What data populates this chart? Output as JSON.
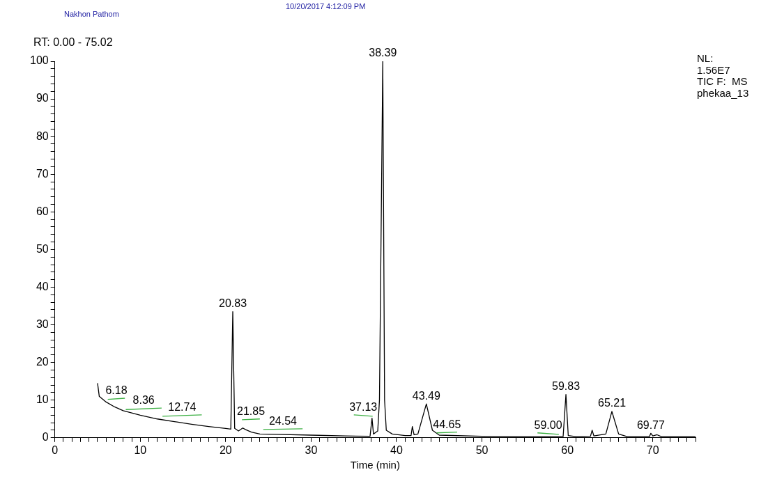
{
  "chart_data": {
    "type": "line",
    "xlabel": "Time (min)",
    "annotations": [
      "Nakhon Pathom",
      "10/20/2017 4:12:09 PM",
      "RT: 0.00 - 75.02",
      "NL:\n1.56E7\nTIC F:  MS\nphekaa_13",
      {
        "text": "6.18",
        "x": 6.18,
        "y": 10.6
      },
      {
        "text": "8.36",
        "x": 8.36,
        "y": 8.0
      },
      {
        "text": "12.74",
        "x": 12.74,
        "y": 6.1
      },
      {
        "text": "20.83",
        "x": 20.83,
        "y": 33.5
      },
      {
        "text": "21.85",
        "x": 21.85,
        "y": 5.0
      },
      {
        "text": "24.54",
        "x": 24.54,
        "y": 2.4
      },
      {
        "text": "37.13",
        "x": 37.13,
        "y": 6.1
      },
      {
        "text": "38.39",
        "x": 38.39,
        "y": 100
      },
      {
        "text": "43.49",
        "x": 43.49,
        "y": 9
      },
      {
        "text": "44.65",
        "x": 44.65,
        "y": 1.5
      },
      {
        "text": "59.00",
        "x": 59.0,
        "y": 1.3
      },
      {
        "text": "59.83",
        "x": 59.83,
        "y": 11.5
      },
      {
        "text": "65.21",
        "x": 65.21,
        "y": 7
      },
      {
        "text": "69.77",
        "x": 69.77,
        "y": 1.2
      }
    ],
    "series": [
      {
        "color": "#000000",
        "x": [
          5.0,
          5.2,
          6,
          7,
          8,
          10,
          12,
          14,
          16,
          18,
          20,
          20.6,
          20.83,
          21.05,
          21.5,
          22,
          22.3,
          23,
          24,
          26,
          30,
          34,
          36.9,
          37.13,
          37.3,
          37.6,
          37.8,
          38.0,
          38.39,
          38.6,
          38.8,
          39.5,
          41,
          41.7,
          41.85,
          42.05,
          42.5,
          43.49,
          44.2,
          45,
          50,
          55,
          59.5,
          59.83,
          60.1,
          61,
          62.7,
          62.9,
          63.1,
          64.5,
          65.21,
          66,
          67,
          69.6,
          69.77,
          70,
          70.5,
          71,
          75
        ],
        "values": [
          14.5,
          11,
          9.5,
          8.2,
          7.2,
          6,
          5,
          4.3,
          3.6,
          3,
          2.5,
          2.3,
          33.5,
          2.5,
          1.8,
          2.6,
          2.2,
          1.5,
          1,
          0.9,
          0.7,
          0.5,
          0.4,
          5.2,
          1,
          1.5,
          1.8,
          10,
          100,
          10,
          2,
          1,
          0.6,
          0.6,
          3,
          0.8,
          1,
          9,
          2,
          0.7,
          0.4,
          0.3,
          0.3,
          11.5,
          0.6,
          0.3,
          0.4,
          2,
          0.5,
          1,
          7,
          1,
          0.3,
          0.3,
          1.2,
          0.5,
          0.8,
          0.3,
          0.3
        ]
      },
      {
        "color": "#3cb043",
        "x": [
          6.2,
          8.2,
          8.25,
          8.3,
          12.5,
          12.55,
          12.6,
          17.2,
          17.25,
          21.9,
          24,
          24.2,
          24.4,
          29,
          29.2,
          35,
          37.2,
          37.3,
          44.7,
          47.1,
          47.5,
          56.5,
          59
        ],
        "values": [
          10.2,
          10.5,
          null,
          7.5,
          7.9,
          null,
          5.7,
          6.1,
          null,
          4.8,
          5.0,
          null,
          2.2,
          2.4,
          null,
          6.1,
          5.7,
          null,
          1.3,
          1.5,
          null,
          1.3,
          0.9
        ]
      }
    ],
    "xlim": [
      0,
      75
    ],
    "xticks": [
      0,
      {
        "value": 1,
        "label": null
      },
      {
        "value": 2,
        "label": null
      },
      {
        "value": 3,
        "label": null
      },
      {
        "value": 4,
        "label": null
      },
      {
        "value": 5,
        "label": null
      },
      {
        "value": 6,
        "label": null
      },
      {
        "value": 7,
        "label": null
      },
      {
        "value": 8,
        "label": null
      },
      {
        "value": 9,
        "label": null
      },
      10,
      {
        "value": 11,
        "label": null
      },
      {
        "value": 12,
        "label": null
      },
      {
        "value": 13,
        "label": null
      },
      {
        "value": 14,
        "label": null
      },
      {
        "value": 15,
        "label": null
      },
      {
        "value": 16,
        "label": null
      },
      {
        "value": 17,
        "label": null
      },
      {
        "value": 18,
        "label": null
      },
      {
        "value": 19,
        "label": null
      },
      20,
      {
        "value": 21,
        "label": null
      },
      {
        "value": 22,
        "label": null
      },
      {
        "value": 23,
        "label": null
      },
      {
        "value": 24,
        "label": null
      },
      {
        "value": 25,
        "label": null
      },
      {
        "value": 26,
        "label": null
      },
      {
        "value": 27,
        "label": null
      },
      {
        "value": 28,
        "label": null
      },
      {
        "value": 29,
        "label": null
      },
      30,
      {
        "value": 31,
        "label": null
      },
      {
        "value": 32,
        "label": null
      },
      {
        "value": 33,
        "label": null
      },
      {
        "value": 34,
        "label": null
      },
      {
        "value": 35,
        "label": null
      },
      {
        "value": 36,
        "label": null
      },
      {
        "value": 37,
        "label": null
      },
      {
        "value": 38,
        "label": null
      },
      {
        "value": 39,
        "label": null
      },
      40,
      {
        "value": 41,
        "label": null
      },
      {
        "value": 42,
        "label": null
      },
      {
        "value": 43,
        "label": null
      },
      {
        "value": 44,
        "label": null
      },
      {
        "value": 45,
        "label": null
      },
      {
        "value": 46,
        "label": null
      },
      {
        "value": 47,
        "label": null
      },
      {
        "value": 48,
        "label": null
      },
      {
        "value": 49,
        "label": null
      },
      50,
      {
        "value": 51,
        "label": null
      },
      {
        "value": 52,
        "label": null
      },
      {
        "value": 53,
        "label": null
      },
      {
        "value": 54,
        "label": null
      },
      {
        "value": 55,
        "label": null
      },
      {
        "value": 56,
        "label": null
      },
      {
        "value": 57,
        "label": null
      },
      {
        "value": 58,
        "label": null
      },
      {
        "value": 59,
        "label": null
      },
      60,
      {
        "value": 61,
        "label": null
      },
      {
        "value": 62,
        "label": null
      },
      {
        "value": 63,
        "label": null
      },
      {
        "value": 64,
        "label": null
      },
      {
        "value": 65,
        "label": null
      },
      {
        "value": 66,
        "label": null
      },
      {
        "value": 67,
        "label": null
      },
      {
        "value": 68,
        "label": null
      },
      {
        "value": 69,
        "label": null
      },
      70,
      {
        "value": 71,
        "label": null
      },
      {
        "value": 72,
        "label": null
      },
      {
        "value": 73,
        "label": null
      },
      {
        "value": 74,
        "label": null
      },
      {
        "value": 75,
        "label": null
      }
    ],
    "ylim": [
      0,
      100
    ],
    "yticks": [
      0,
      {
        "value": 2,
        "label": null
      },
      {
        "value": 4,
        "label": null
      },
      {
        "value": 6,
        "label": null
      },
      {
        "value": 8,
        "label": null
      },
      10,
      {
        "value": 12,
        "label": null
      },
      {
        "value": 14,
        "label": null
      },
      {
        "value": 16,
        "label": null
      },
      {
        "value": 18,
        "label": null
      },
      20,
      {
        "value": 22,
        "label": null
      },
      {
        "value": 24,
        "label": null
      },
      {
        "value": 26,
        "label": null
      },
      {
        "value": 28,
        "label": null
      },
      30,
      {
        "value": 32,
        "label": null
      },
      {
        "value": 34,
        "label": null
      },
      {
        "value": 36,
        "label": null
      },
      {
        "value": 38,
        "label": null
      },
      40,
      {
        "value": 42,
        "label": null
      },
      {
        "value": 44,
        "label": null
      },
      {
        "value": 46,
        "label": null
      },
      {
        "value": 48,
        "label": null
      },
      50,
      {
        "value": 52,
        "label": null
      },
      {
        "value": 54,
        "label": null
      },
      {
        "value": 56,
        "label": null
      },
      {
        "value": 58,
        "label": null
      },
      60,
      {
        "value": 62,
        "label": null
      },
      {
        "value": 64,
        "label": null
      },
      {
        "value": 66,
        "label": null
      },
      {
        "value": 68,
        "label": null
      },
      70,
      {
        "value": 72,
        "label": null
      },
      {
        "value": 74,
        "label": null
      },
      {
        "value": 76,
        "label": null
      },
      {
        "value": 78,
        "label": null
      },
      80,
      {
        "value": 82,
        "label": null
      },
      {
        "value": 84,
        "label": null
      },
      {
        "value": 86,
        "label": null
      },
      {
        "value": 88,
        "label": null
      },
      90,
      {
        "value": 92,
        "label": null
      },
      {
        "value": 94,
        "label": null
      },
      {
        "value": 96,
        "label": null
      },
      {
        "value": 98,
        "label": null
      },
      100
    ],
    "grid": false,
    "legend": false,
    "marker": "none",
    "line_style": "solid"
  }
}
